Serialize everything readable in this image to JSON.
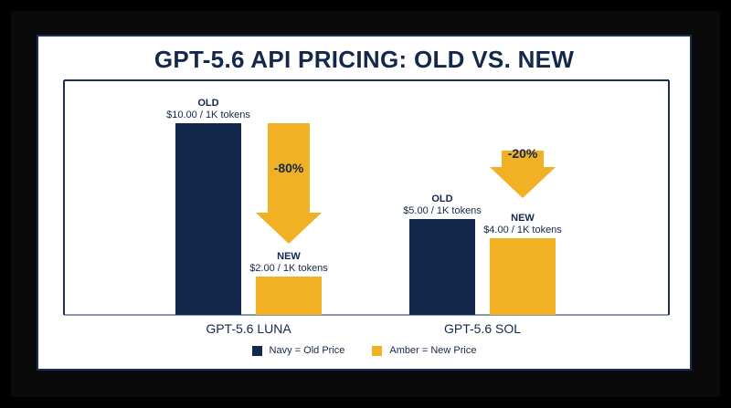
{
  "title": "GPT-5.6 API PRICING: OLD VS. NEW",
  "colors": {
    "old": "#14284b",
    "new": "#f2b124",
    "text": "#14284b",
    "frame": "#1b2f57"
  },
  "chart_data": {
    "type": "bar",
    "title": "GPT-5.6 API PRICING: OLD VS. NEW",
    "categories": [
      "GPT-5.6 LUNA",
      "GPT-5.6 SOL"
    ],
    "ylim": [
      0,
      10
    ],
    "grid": false,
    "legend_position": "bottom",
    "series": [
      {
        "name": "Old Price",
        "values": [
          10.0,
          5.0
        ]
      },
      {
        "name": "New Price",
        "values": [
          2.0,
          4.0
        ]
      }
    ],
    "bar_labels": [
      {
        "heading": "OLD",
        "text": "$10.00 / 1K tokens"
      },
      {
        "heading": "NEW",
        "text": "$2.00 / 1K tokens"
      },
      {
        "heading": "OLD",
        "text": "$5.00 / 1K tokens"
      },
      {
        "heading": "NEW",
        "text": "$4.00 / 1K tokens"
      }
    ],
    "changes": [
      "-80%",
      "-20%"
    ]
  },
  "legend": [
    {
      "label": "Navy = Old Price",
      "color": "#14284b"
    },
    {
      "label": "Amber = New Price",
      "color": "#f2b124"
    }
  ]
}
